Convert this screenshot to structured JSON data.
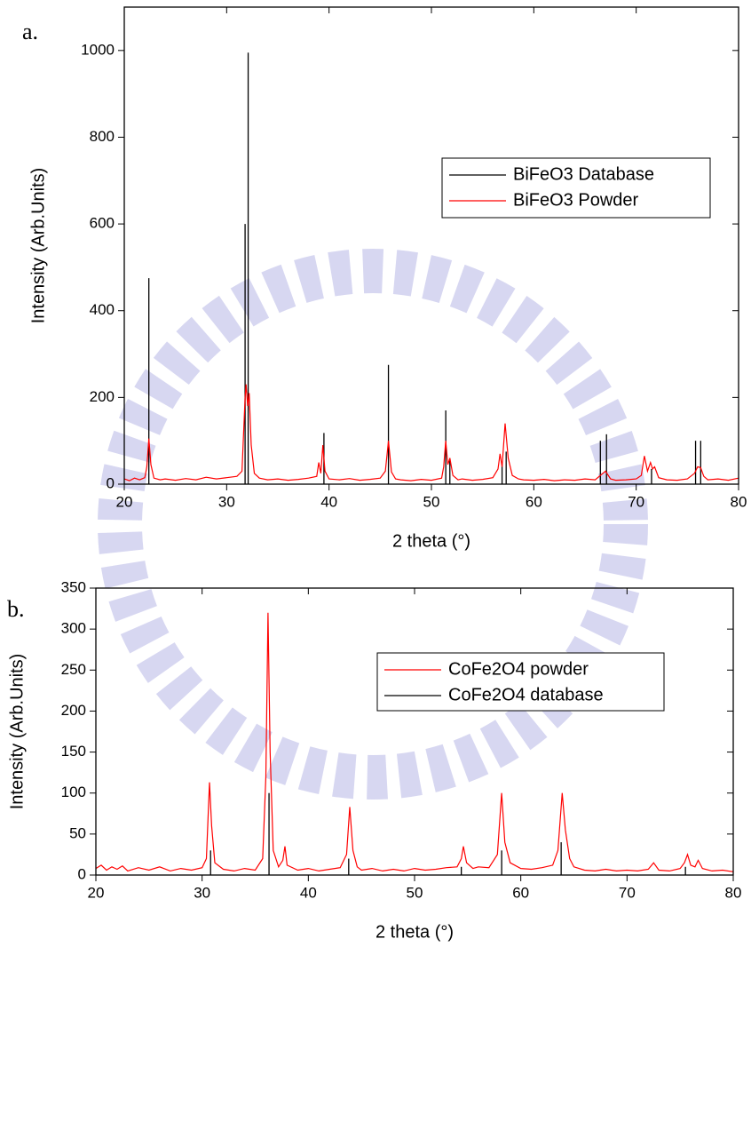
{
  "chart_data": [
    {
      "type": "line",
      "panel_label": "a.",
      "x_label": "2 theta (°)",
      "y_label": "Intensity (Arb.Units)",
      "xlim": [
        20,
        80
      ],
      "xticks": [
        20,
        30,
        40,
        50,
        60,
        70,
        80
      ],
      "ylim": [
        0,
        1100
      ],
      "yticks": [
        0,
        200,
        400,
        600,
        800,
        1000
      ],
      "legend": "upper right",
      "series": [
        {
          "name": "BiFeO3 Database",
          "color": "#000000",
          "type": "stem",
          "x": [
            22.4,
            31.8,
            32.1,
            39.5,
            45.8,
            51.4,
            51.8,
            56.9,
            57.3,
            66.5,
            67.1,
            71.5,
            75.8,
            76.3
          ],
          "values": [
            475,
            600,
            995,
            118,
            275,
            170,
            60,
            50,
            75,
            100,
            115,
            35,
            100,
            100
          ]
        },
        {
          "name": "BiFeO3 Powder",
          "color": "#ff0000",
          "type": "line",
          "x": [
            20,
            20.5,
            21,
            21.5,
            22,
            22.2,
            22.4,
            22.6,
            22.9,
            23.5,
            24,
            25,
            26,
            27,
            28,
            29,
            30,
            31,
            31.5,
            31.8,
            31.9,
            32.05,
            32.2,
            32.4,
            32.7,
            33.2,
            34,
            35,
            36,
            37,
            38,
            38.8,
            39.0,
            39.2,
            39.4,
            39.6,
            40,
            41,
            42,
            43,
            44,
            45,
            45.5,
            45.8,
            46.1,
            46.5,
            47,
            48,
            49,
            50,
            51,
            51.2,
            51.4,
            51.6,
            51.8,
            52.1,
            52.6,
            53,
            54,
            55,
            56,
            56.5,
            56.7,
            56.9,
            57.2,
            57.5,
            57.9,
            58.5,
            59,
            60,
            61,
            62,
            63,
            64,
            65,
            66,
            66.5,
            67.0,
            67.5,
            68,
            69,
            70,
            70.5,
            70.8,
            71.1,
            71.4,
            71.6,
            71.8,
            72.2,
            73,
            74,
            75,
            75.7,
            76.0,
            76.3,
            76.6,
            77,
            78,
            79,
            80
          ],
          "values": [
            12,
            8,
            14,
            10,
            15,
            40,
            105,
            45,
            14,
            10,
            12,
            9,
            13,
            10,
            16,
            12,
            15,
            18,
            30,
            200,
            230,
            180,
            210,
            90,
            25,
            14,
            10,
            12,
            9,
            11,
            14,
            18,
            50,
            25,
            90,
            30,
            12,
            10,
            13,
            9,
            11,
            14,
            30,
            100,
            28,
            12,
            10,
            8,
            11,
            9,
            14,
            40,
            100,
            45,
            60,
            20,
            10,
            12,
            9,
            11,
            15,
            35,
            70,
            40,
            140,
            60,
            20,
            12,
            10,
            9,
            11,
            8,
            10,
            9,
            12,
            10,
            20,
            30,
            12,
            9,
            10,
            12,
            20,
            65,
            30,
            50,
            35,
            40,
            15,
            10,
            9,
            12,
            25,
            40,
            38,
            18,
            10,
            12,
            9,
            14
          ]
        }
      ]
    },
    {
      "type": "line",
      "panel_label": "b.",
      "x_label": "2 theta (°)",
      "y_label": "Intensity (Arb.Units)",
      "xlim": [
        20,
        80
      ],
      "xticks": [
        20,
        30,
        40,
        50,
        60,
        70,
        80
      ],
      "ylim": [
        0,
        350
      ],
      "yticks": [
        0,
        50,
        100,
        150,
        200,
        250,
        300,
        350
      ],
      "legend": "upper right",
      "series": [
        {
          "name": "CoFe2O4 powder",
          "color": "#ff0000",
          "type": "line",
          "x": [
            20,
            20.5,
            21,
            21.5,
            22,
            22.5,
            23,
            24,
            25,
            26,
            27,
            28,
            29,
            30,
            30.4,
            30.7,
            30.9,
            31.2,
            32,
            33,
            34,
            35,
            35.7,
            36.0,
            36.2,
            36.4,
            36.7,
            37.2,
            37.6,
            37.8,
            38.0,
            39,
            40,
            41,
            42,
            43,
            43.6,
            43.9,
            44.2,
            44.6,
            45,
            46,
            47,
            48,
            49,
            50,
            51,
            52,
            53,
            54,
            54.4,
            54.6,
            54.9,
            55.5,
            56,
            57,
            57.8,
            58.2,
            58.5,
            59,
            60,
            61,
            62,
            63,
            63.5,
            63.9,
            64.2,
            64.6,
            65,
            66,
            67,
            68,
            69,
            70,
            71,
            72,
            72.5,
            73,
            74,
            75,
            75.4,
            75.7,
            76,
            76.4,
            76.7,
            77.1,
            78,
            79,
            80
          ],
          "values": [
            8,
            12,
            6,
            10,
            7,
            11,
            5,
            9,
            6,
            10,
            5,
            8,
            6,
            9,
            20,
            113,
            60,
            15,
            7,
            5,
            8,
            6,
            20,
            120,
            320,
            150,
            30,
            10,
            18,
            35,
            12,
            6,
            8,
            5,
            7,
            9,
            25,
            83,
            30,
            10,
            6,
            8,
            5,
            7,
            5,
            8,
            6,
            7,
            9,
            10,
            20,
            35,
            15,
            8,
            10,
            9,
            25,
            100,
            40,
            15,
            8,
            7,
            9,
            12,
            30,
            100,
            55,
            20,
            10,
            6,
            5,
            7,
            5,
            6,
            5,
            7,
            15,
            6,
            5,
            8,
            15,
            25,
            12,
            10,
            18,
            8,
            5,
            6,
            4
          ]
        },
        {
          "name": "CoFe2O4 database",
          "color": "#000000",
          "type": "stem",
          "x": [
            30.8,
            36.3,
            43.8,
            54.4,
            58.2,
            63.8,
            75.5
          ],
          "values": [
            30,
            100,
            20,
            10,
            30,
            40,
            10
          ]
        }
      ]
    }
  ]
}
